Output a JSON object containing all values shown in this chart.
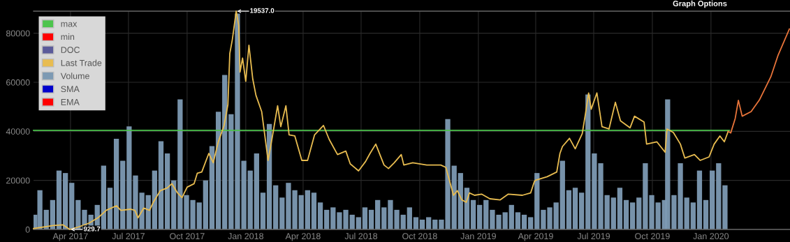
{
  "chart_data": {
    "type": "line",
    "xlim": [
      "2017-02-02",
      "2020-05-04"
    ],
    "xticks": [
      {
        "value": "2017-04-01",
        "label": "Apr 2017"
      },
      {
        "value": "2017-07-01",
        "label": "Jul 2017"
      },
      {
        "value": "2017-10-01",
        "label": "Oct 2017"
      },
      {
        "value": "2018-01-01",
        "label": "Jan 2018"
      },
      {
        "value": "2018-04-01",
        "label": "Apr 2018"
      },
      {
        "value": "2018-07-01",
        "label": "Jul 2018"
      },
      {
        "value": "2018-10-01",
        "label": "Oct 2018"
      },
      {
        "value": "2019-01-01",
        "label": "Jan 2019"
      },
      {
        "value": "2019-04-01",
        "label": "Apr 2019"
      },
      {
        "value": "2019-07-01",
        "label": "Jul 2019"
      },
      {
        "value": "2019-10-01",
        "label": "Oct 2019"
      },
      {
        "value": "2020-01-01",
        "label": "Jan 2020"
      }
    ],
    "ylim": [
      0,
      89000
    ],
    "yticks": [
      0,
      20000,
      40000,
      60000,
      80000
    ],
    "y2lim": [
      929.7,
      19537.0
    ],
    "grid": true,
    "legend": "top left",
    "annotations": [
      "Graph Options"
    ],
    "series": [
      {
        "name": "max",
        "color": "#4cc44c",
        "x": [
          "2017-02-02",
          "2020-01-30"
        ],
        "values": [
          40400,
          40400
        ]
      },
      {
        "name": "min",
        "color": "#ff0000"
      },
      {
        "name": "DOC",
        "color": "#5a5a9a"
      },
      {
        "name": "Last Trade",
        "axis": "y2",
        "color": "#e8bc50",
        "x": [
          "2017-02-02",
          "2017-03-05",
          "2017-03-20",
          "2017-03-31",
          "2017-04-15",
          "2017-04-30",
          "2017-05-15",
          "2017-05-27",
          "2017-06-12",
          "2017-06-19",
          "2017-07-04",
          "2017-07-11",
          "2017-07-16",
          "2017-07-25",
          "2017-08-03",
          "2017-08-09",
          "2017-08-20",
          "2017-08-31",
          "2017-09-07",
          "2017-09-16",
          "2017-09-23",
          "2017-10-01",
          "2017-10-12",
          "2017-10-17",
          "2017-10-24",
          "2017-11-04",
          "2017-11-11",
          "2017-11-19",
          "2017-11-28",
          "2017-12-04",
          "2017-12-07",
          "2017-12-11",
          "2017-12-17",
          "2017-12-21",
          "2017-12-23",
          "2017-12-27",
          "2018-01-01",
          "2018-01-06",
          "2018-01-12",
          "2018-01-17",
          "2018-01-26",
          "2018-02-05",
          "2018-02-11",
          "2018-02-20",
          "2018-02-25",
          "2018-03-05",
          "2018-03-10",
          "2018-03-19",
          "2018-03-30",
          "2018-04-08",
          "2018-04-19",
          "2018-05-03",
          "2018-05-12",
          "2018-05-25",
          "2018-06-07",
          "2018-06-14",
          "2018-06-27",
          "2018-07-08",
          "2018-07-15",
          "2018-07-24",
          "2018-08-06",
          "2018-08-13",
          "2018-08-22",
          "2018-09-02",
          "2018-09-06",
          "2018-09-20",
          "2018-10-12",
          "2018-11-03",
          "2018-11-11",
          "2018-11-16",
          "2018-11-23",
          "2018-11-29",
          "2018-12-06",
          "2018-12-13",
          "2018-12-18",
          "2018-12-26",
          "2019-01-06",
          "2019-01-19",
          "2019-02-04",
          "2019-02-17",
          "2019-03-11",
          "2019-03-24",
          "2019-03-30",
          "2019-04-01",
          "2019-04-19",
          "2019-05-04",
          "2019-05-09",
          "2019-05-13",
          "2019-05-24",
          "2019-06-02",
          "2019-06-13",
          "2019-06-18",
          "2019-06-23",
          "2019-06-27",
          "2019-07-06",
          "2019-07-14",
          "2019-07-25",
          "2019-08-04",
          "2019-08-12",
          "2019-08-27",
          "2019-09-03",
          "2019-09-18",
          "2019-09-22",
          "2019-10-08",
          "2019-10-21",
          "2019-10-24",
          "2019-11-03",
          "2019-11-14",
          "2019-11-21",
          "2019-12-06",
          "2019-12-15",
          "2019-12-29",
          "2020-01-06",
          "2020-01-15",
          "2020-01-22",
          "2020-01-28"
        ],
        "value_labels": [
          null,
          null,
          null,
          "929.7",
          null,
          null,
          null,
          null,
          null,
          null,
          null,
          null,
          null,
          null,
          null,
          null,
          null,
          null,
          null,
          null,
          null,
          null,
          null,
          null,
          null,
          null,
          null,
          null,
          null,
          null,
          null,
          null,
          "19537.0",
          null,
          null,
          null,
          null,
          null,
          null,
          null,
          null,
          null,
          null,
          null,
          null,
          null,
          null,
          null,
          null,
          null,
          null,
          null,
          null,
          null,
          null,
          null,
          null,
          null,
          null,
          null,
          null,
          null,
          null,
          null,
          null,
          null,
          null,
          null,
          null,
          null,
          null,
          null,
          null,
          null,
          null,
          null,
          null,
          null,
          null,
          null,
          null,
          null,
          null,
          null,
          null,
          null,
          null,
          null,
          null,
          null,
          null,
          null,
          null,
          null,
          null,
          null,
          null,
          null,
          null,
          null,
          null,
          null,
          null,
          null,
          null,
          null,
          null,
          null,
          null,
          null,
          null,
          null,
          null,
          null,
          null,
          null
        ],
        "values": [
          1009,
          1266,
          1326,
          929.7,
          1167,
          1465,
          1960,
          2555,
          2951,
          2555,
          2654,
          2555,
          1921,
          2753,
          2555,
          3249,
          4239,
          4477,
          4834,
          4041,
          3645,
          4537,
          4834,
          5726,
          5825,
          7411,
          6618,
          8402,
          9789,
          11573,
          15934,
          17123,
          19537.0,
          18310,
          14348,
          15538,
          13555,
          16628,
          13754,
          12365,
          10979,
          6816,
          8600,
          11474,
          9690,
          11474,
          8997,
          8898,
          6816,
          6816,
          8997,
          9789,
          8600,
          7312,
          7609,
          6519,
          5924,
          6717,
          7411,
          8204,
          6420,
          6122,
          6618,
          7312,
          6420,
          6618,
          6420,
          6420,
          6221,
          5230,
          3843,
          4239,
          3447,
          3248,
          4041,
          3843,
          3942,
          3546,
          3447,
          3942,
          3843,
          4041,
          5032,
          5131,
          5429,
          5825,
          7411,
          8006,
          8699,
          7807,
          9096,
          10780,
          12564,
          11177,
          12564,
          9690,
          9492,
          11771,
          10186,
          9591,
          10582,
          10087,
          8204,
          8402,
          7510,
          9492,
          9195,
          8204,
          7014,
          7312,
          6816,
          7113,
          8204,
          8898,
          8402,
          9294
        ]
      },
      {
        "axis": "y2",
        "color": "#e8743a",
        "x": [
          "2020-01-28",
          "2020-02-01",
          "2020-02-08",
          "2020-02-13",
          "2020-02-19",
          "2020-03-04",
          "2020-03-17",
          "2020-04-04",
          "2020-04-15",
          "2020-05-03"
        ],
        "values": [
          9294,
          9155,
          10384,
          11930,
          10582,
          10979,
          11970,
          13951,
          15735,
          18015
        ]
      },
      {
        "name": "Volume",
        "type": "bar",
        "color": "#7d9ab3",
        "x": [
          "2017-02-04",
          "2017-02-12",
          "2017-02-22",
          "2017-03-04",
          "2017-03-14",
          "2017-03-24",
          "2017-04-03",
          "2017-04-13",
          "2017-04-23",
          "2017-05-03",
          "2017-05-13",
          "2017-05-23",
          "2017-06-02",
          "2017-06-12",
          "2017-06-22",
          "2017-07-02",
          "2017-07-12",
          "2017-07-22",
          "2017-08-01",
          "2017-08-11",
          "2017-08-21",
          "2017-08-31",
          "2017-09-10",
          "2017-09-20",
          "2017-09-30",
          "2017-10-10",
          "2017-10-20",
          "2017-10-30",
          "2017-11-09",
          "2017-11-19",
          "2017-11-29",
          "2017-12-09",
          "2017-12-19",
          "2017-12-29",
          "2018-01-08",
          "2018-01-18",
          "2018-01-28",
          "2018-02-07",
          "2018-02-17",
          "2018-02-27",
          "2018-03-09",
          "2018-03-19",
          "2018-03-29",
          "2018-04-08",
          "2018-04-18",
          "2018-04-28",
          "2018-05-08",
          "2018-05-18",
          "2018-05-28",
          "2018-06-07",
          "2018-06-17",
          "2018-06-27",
          "2018-07-07",
          "2018-07-17",
          "2018-07-27",
          "2018-08-06",
          "2018-08-16",
          "2018-08-26",
          "2018-09-05",
          "2018-09-15",
          "2018-09-25",
          "2018-10-05",
          "2018-10-15",
          "2018-10-25",
          "2018-11-04",
          "2018-11-14",
          "2018-11-24",
          "2018-12-04",
          "2018-12-14",
          "2018-12-24",
          "2019-01-03",
          "2019-01-13",
          "2019-01-23",
          "2019-02-02",
          "2019-02-12",
          "2019-02-22",
          "2019-03-04",
          "2019-03-14",
          "2019-03-24",
          "2019-04-03",
          "2019-04-13",
          "2019-04-23",
          "2019-05-03",
          "2019-05-13",
          "2019-05-23",
          "2019-06-02",
          "2019-06-12",
          "2019-06-22",
          "2019-07-02",
          "2019-07-12",
          "2019-07-22",
          "2019-08-01",
          "2019-08-11",
          "2019-08-21",
          "2019-08-31",
          "2019-09-10",
          "2019-09-20",
          "2019-09-30",
          "2019-10-10",
          "2019-10-20",
          "2019-10-25",
          "2019-11-04",
          "2019-11-14",
          "2019-11-24",
          "2019-12-04",
          "2019-12-14",
          "2019-12-24",
          "2020-01-03",
          "2020-01-13",
          "2020-01-23"
        ],
        "values": [
          6000,
          16000,
          8000,
          12000,
          24000,
          23000,
          19000,
          12000,
          8000,
          6000,
          10000,
          26000,
          17000,
          37000,
          28000,
          42000,
          22000,
          15000,
          14000,
          24000,
          36000,
          31000,
          20000,
          53000,
          14000,
          12000,
          11000,
          20000,
          34000,
          48000,
          63000,
          47000,
          88000,
          28000,
          24000,
          31000,
          15000,
          43000,
          18000,
          13000,
          19000,
          16000,
          14000,
          16000,
          15000,
          11000,
          8000,
          9000,
          7000,
          8000,
          6000,
          5000,
          9000,
          8000,
          12000,
          9000,
          12000,
          8000,
          6000,
          9000,
          5000,
          4000,
          5000,
          4000,
          4000,
          45000,
          26000,
          23000,
          17000,
          12000,
          10000,
          12000,
          8000,
          6000,
          7000,
          10000,
          7000,
          6000,
          5000,
          23000,
          8000,
          9000,
          11000,
          28000,
          16000,
          17000,
          15000,
          55000,
          31000,
          27000,
          14000,
          13000,
          17000,
          12000,
          11000,
          13000,
          27000,
          14000,
          11000,
          12000,
          53000,
          14000,
          27000,
          13000,
          11000,
          24000,
          12000,
          24000,
          27000,
          18000
        ]
      },
      {
        "name": "SMA",
        "color": "#0000cc"
      },
      {
        "name": "EMA",
        "color": "#ff0000"
      }
    ]
  }
}
